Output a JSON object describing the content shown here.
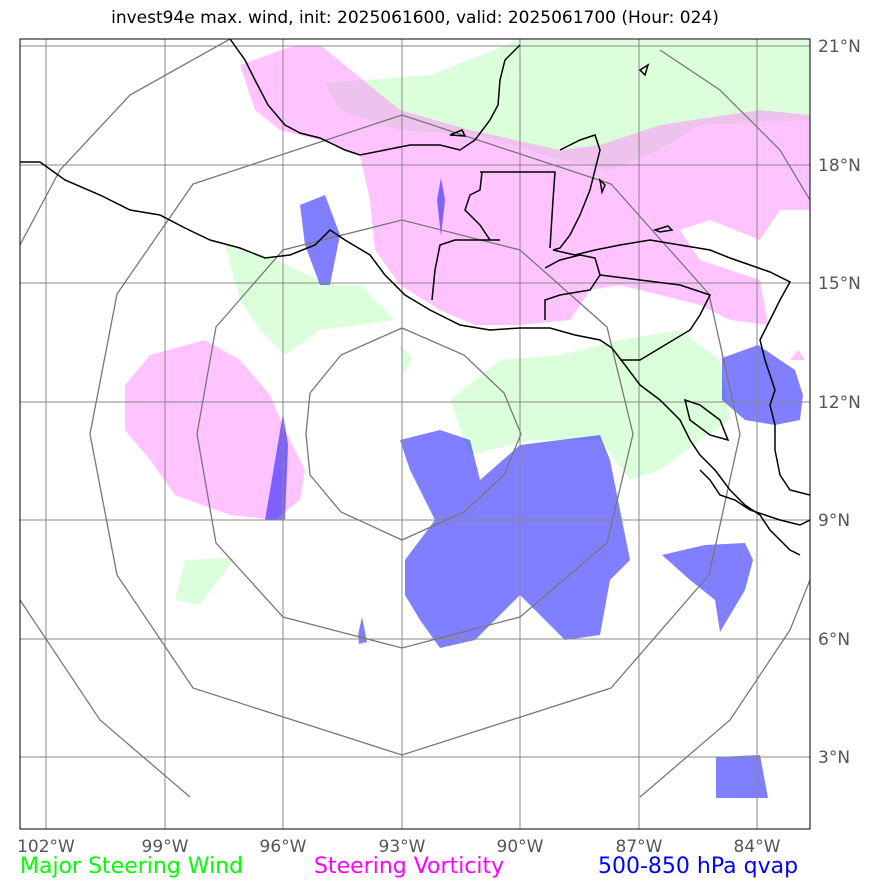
{
  "title": "invest94e max. wind, init: 2025061600, valid: 2025061700 (Hour: 024)",
  "map": {
    "lon_ticks": [
      "102°W",
      "99°W",
      "96°W",
      "93°W",
      "90°W",
      "87°W",
      "84°W"
    ],
    "lat_ticks": [
      "21°N",
      "18°N",
      "15°N",
      "12°N",
      "9°N",
      "6°N",
      "3°N"
    ],
    "colors": {
      "steering_wind": "#00ff00",
      "steering_vorticity": "#ff00ff",
      "qvap": "#0000ff",
      "grid": "#888888",
      "coast": "#000000"
    }
  },
  "legend": {
    "wind": "Major Steering Wind",
    "vorticity": "Steering Vorticity",
    "qvap": "500-850 hPa qvap"
  }
}
